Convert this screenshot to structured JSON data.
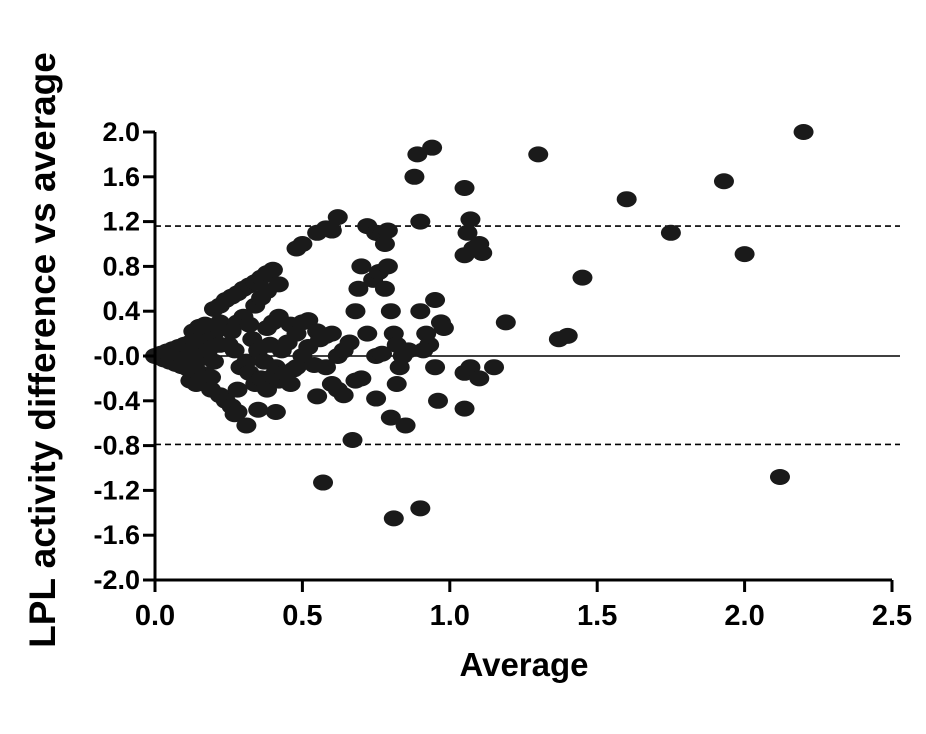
{
  "chart_data": {
    "type": "scatter",
    "title": "",
    "xlabel": "Average",
    "ylabel": "LPL activity difference vs average",
    "xlim": [
      0,
      2.5
    ],
    "ylim": [
      -2.0,
      2.0
    ],
    "x_ticks": [
      "0.0",
      "0.5",
      "1.0",
      "1.5",
      "2.0",
      "2.5"
    ],
    "y_ticks": [
      "2.0",
      "1.6",
      "1.2",
      "0.8",
      "0.4",
      "-0.0",
      "-0.4",
      "-0.8",
      "-1.2",
      "-1.6",
      "-2.0"
    ],
    "x_tick_values": [
      0,
      0.5,
      1.0,
      1.5,
      2.0,
      2.5
    ],
    "y_tick_values": [
      2.0,
      1.6,
      1.2,
      0.8,
      0.4,
      0.0,
      -0.4,
      -0.8,
      -1.2,
      -1.6,
      -2.0
    ],
    "reference_lines": [
      {
        "y": 1.16,
        "style": "dashed"
      },
      {
        "y": 0.0,
        "style": "solid"
      },
      {
        "y": -0.79,
        "style": "dashed"
      }
    ],
    "grid": false,
    "marker_color": "#1a1a1a",
    "series": [
      {
        "points": [
          [
            0.0,
            0.0
          ],
          [
            0.02,
            0.02
          ],
          [
            0.03,
            -0.03
          ],
          [
            0.04,
            0.04
          ],
          [
            0.05,
            -0.05
          ],
          [
            0.06,
            0.06
          ],
          [
            0.07,
            -0.07
          ],
          [
            0.08,
            0.08
          ],
          [
            0.09,
            -0.09
          ],
          [
            0.1,
            0.1
          ],
          [
            0.11,
            -0.11
          ],
          [
            0.12,
            0.12
          ],
          [
            0.13,
            -0.13
          ],
          [
            0.14,
            0.14
          ],
          [
            0.15,
            -0.15
          ],
          [
            0.16,
            0.16
          ],
          [
            0.17,
            -0.17
          ],
          [
            0.18,
            0.18
          ],
          [
            0.19,
            -0.19
          ],
          [
            0.2,
            0.2
          ],
          [
            0.05,
            0.0
          ],
          [
            0.08,
            0.02
          ],
          [
            0.1,
            -0.02
          ],
          [
            0.12,
            0.05
          ],
          [
            0.14,
            -0.05
          ],
          [
            0.16,
            0.08
          ],
          [
            0.15,
            0.0
          ],
          [
            0.18,
            0.05
          ],
          [
            0.2,
            -0.05
          ],
          [
            0.22,
            0.1
          ],
          [
            0.13,
            0.22
          ],
          [
            0.15,
            0.26
          ],
          [
            0.17,
            0.28
          ],
          [
            0.12,
            -0.22
          ],
          [
            0.14,
            -0.25
          ],
          [
            0.19,
            -0.3
          ],
          [
            0.2,
            0.42
          ],
          [
            0.22,
            0.45
          ],
          [
            0.24,
            0.5
          ],
          [
            0.26,
            0.53
          ],
          [
            0.28,
            0.56
          ],
          [
            0.3,
            0.6
          ],
          [
            0.32,
            0.63
          ],
          [
            0.34,
            0.66
          ],
          [
            0.36,
            0.7
          ],
          [
            0.38,
            0.74
          ],
          [
            0.4,
            0.77
          ],
          [
            0.22,
            -0.35
          ],
          [
            0.24,
            -0.4
          ],
          [
            0.26,
            -0.45
          ],
          [
            0.28,
            -0.5
          ],
          [
            0.31,
            -0.62
          ],
          [
            0.27,
            -0.52
          ],
          [
            0.22,
            0.3
          ],
          [
            0.26,
            0.22
          ],
          [
            0.28,
            0.3
          ],
          [
            0.3,
            0.35
          ],
          [
            0.32,
            0.28
          ],
          [
            0.34,
            0.45
          ],
          [
            0.36,
            0.52
          ],
          [
            0.38,
            0.58
          ],
          [
            0.42,
            0.64
          ],
          [
            0.25,
            0.1
          ],
          [
            0.27,
            0.05
          ],
          [
            0.29,
            -0.1
          ],
          [
            0.31,
            -0.05
          ],
          [
            0.33,
            0.15
          ],
          [
            0.35,
            0.05
          ],
          [
            0.37,
            -0.05
          ],
          [
            0.39,
            0.1
          ],
          [
            0.41,
            -0.1
          ],
          [
            0.43,
            0.05
          ],
          [
            0.45,
            0.12
          ],
          [
            0.47,
            -0.12
          ],
          [
            0.5,
            0.0
          ],
          [
            0.52,
            0.08
          ],
          [
            0.54,
            -0.08
          ],
          [
            0.56,
            0.15
          ],
          [
            0.58,
            -0.1
          ],
          [
            0.28,
            -0.3
          ],
          [
            0.32,
            -0.15
          ],
          [
            0.34,
            -0.25
          ],
          [
            0.36,
            -0.2
          ],
          [
            0.38,
            -0.3
          ],
          [
            0.4,
            -0.18
          ],
          [
            0.42,
            -0.22
          ],
          [
            0.44,
            -0.15
          ],
          [
            0.46,
            -0.25
          ],
          [
            0.48,
            -0.1
          ],
          [
            0.41,
            -0.5
          ],
          [
            0.35,
            -0.48
          ],
          [
            0.38,
            0.25
          ],
          [
            0.4,
            0.3
          ],
          [
            0.42,
            0.35
          ],
          [
            0.46,
            0.28
          ],
          [
            0.48,
            0.2
          ],
          [
            0.5,
            0.3
          ],
          [
            0.52,
            0.32
          ],
          [
            0.55,
            0.22
          ],
          [
            0.58,
            0.18
          ],
          [
            0.6,
            0.2
          ],
          [
            0.48,
            0.96
          ],
          [
            0.5,
            1.0
          ],
          [
            0.55,
            1.1
          ],
          [
            0.58,
            1.14
          ],
          [
            0.6,
            1.12
          ],
          [
            0.62,
            1.24
          ],
          [
            0.55,
            -0.36
          ],
          [
            0.57,
            -1.13
          ],
          [
            0.6,
            -0.25
          ],
          [
            0.62,
            -0.3
          ],
          [
            0.64,
            -0.35
          ],
          [
            0.67,
            -0.75
          ],
          [
            0.68,
            -0.22
          ],
          [
            0.7,
            -0.2
          ],
          [
            0.62,
            0.0
          ],
          [
            0.64,
            0.05
          ],
          [
            0.66,
            0.12
          ],
          [
            0.68,
            0.4
          ],
          [
            0.69,
            0.6
          ],
          [
            0.7,
            0.8
          ],
          [
            0.72,
            0.2
          ],
          [
            0.74,
            0.68
          ],
          [
            0.75,
            0.0
          ],
          [
            0.76,
            0.75
          ],
          [
            0.77,
            0.02
          ],
          [
            0.78,
            0.6
          ],
          [
            0.79,
            0.8
          ],
          [
            0.72,
            1.16
          ],
          [
            0.75,
            1.1
          ],
          [
            0.77,
            1.08
          ],
          [
            0.78,
            1.0
          ],
          [
            0.79,
            1.12
          ],
          [
            0.8,
            0.4
          ],
          [
            0.81,
            0.2
          ],
          [
            0.82,
            0.1
          ],
          [
            0.83,
            -0.1
          ],
          [
            0.84,
            0.0
          ],
          [
            0.86,
            0.05
          ],
          [
            0.75,
            -0.38
          ],
          [
            0.8,
            -0.55
          ],
          [
            0.82,
            -0.25
          ],
          [
            0.85,
            -0.62
          ],
          [
            0.81,
            -1.45
          ],
          [
            0.9,
            -1.36
          ],
          [
            0.88,
            1.6
          ],
          [
            0.89,
            1.8
          ],
          [
            0.9,
            1.2
          ],
          [
            0.92,
            0.2
          ],
          [
            0.93,
            0.1
          ],
          [
            0.94,
            1.86
          ],
          [
            0.95,
            0.5
          ],
          [
            0.96,
            -0.4
          ],
          [
            0.97,
            0.3
          ],
          [
            0.98,
            0.25
          ],
          [
            0.9,
            0.4
          ],
          [
            0.91,
            0.05
          ],
          [
            0.95,
            -0.1
          ],
          [
            1.05,
            1.5
          ],
          [
            1.06,
            1.1
          ],
          [
            1.07,
            1.22
          ],
          [
            1.05,
            0.9
          ],
          [
            1.08,
            0.96
          ],
          [
            1.1,
            1.0
          ],
          [
            1.11,
            0.92
          ],
          [
            1.05,
            -0.15
          ],
          [
            1.07,
            -0.1
          ],
          [
            1.05,
            -0.47
          ],
          [
            1.1,
            -0.2
          ],
          [
            1.15,
            -0.1
          ],
          [
            1.19,
            0.3
          ],
          [
            1.3,
            1.8
          ],
          [
            1.37,
            0.15
          ],
          [
            1.4,
            0.18
          ],
          [
            1.45,
            0.7
          ],
          [
            1.6,
            1.4
          ],
          [
            1.75,
            1.1
          ],
          [
            1.93,
            1.56
          ],
          [
            2.0,
            0.91
          ],
          [
            2.12,
            -1.08
          ],
          [
            2.2,
            2.0
          ]
        ]
      }
    ]
  }
}
